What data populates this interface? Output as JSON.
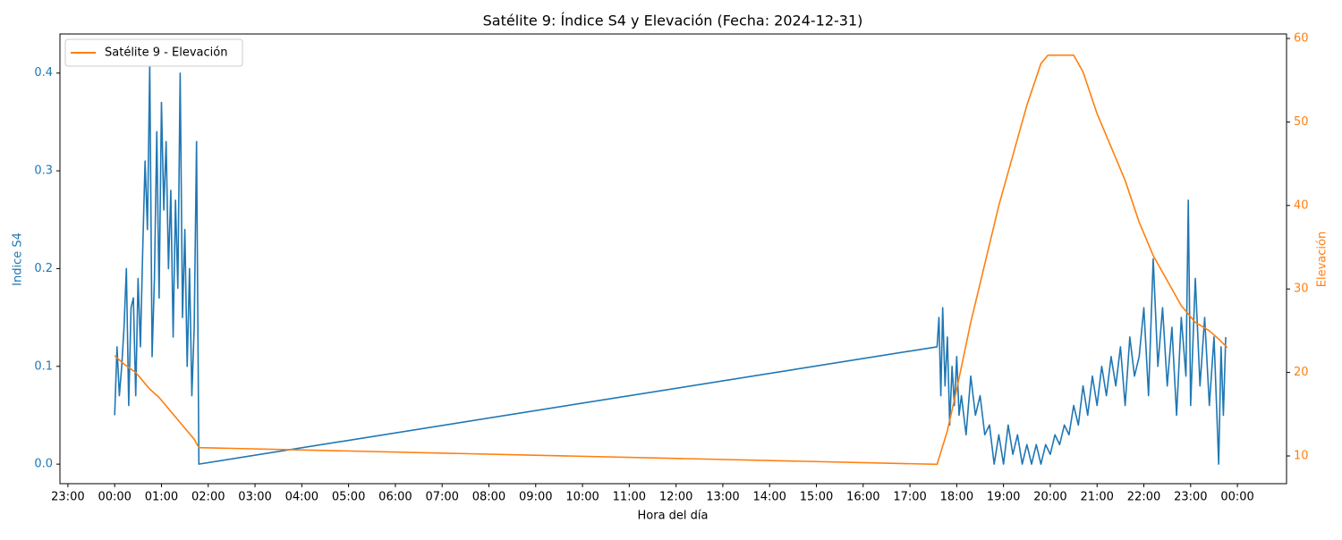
{
  "chart_data": {
    "type": "line",
    "title": "Satélite 9: Índice S4 y Elevación (Fecha: 2024-12-31)",
    "xlabel": "Hora del día",
    "ylabel": "Indice S4",
    "y2label": "Elevación",
    "xlim": [
      -1.17,
      25.05
    ],
    "xticks": [
      {
        "value": -1,
        "label": "23:00"
      },
      {
        "value": 0,
        "label": "00:00"
      },
      {
        "value": 1,
        "label": "01:00"
      },
      {
        "value": 2,
        "label": "02:00"
      },
      {
        "value": 3,
        "label": "03:00"
      },
      {
        "value": 4,
        "label": "04:00"
      },
      {
        "value": 5,
        "label": "05:00"
      },
      {
        "value": 6,
        "label": "06:00"
      },
      {
        "value": 7,
        "label": "07:00"
      },
      {
        "value": 8,
        "label": "08:00"
      },
      {
        "value": 9,
        "label": "09:00"
      },
      {
        "value": 10,
        "label": "10:00"
      },
      {
        "value": 11,
        "label": "11:00"
      },
      {
        "value": 12,
        "label": "12:00"
      },
      {
        "value": 13,
        "label": "13:00"
      },
      {
        "value": 14,
        "label": "14:00"
      },
      {
        "value": 15,
        "label": "15:00"
      },
      {
        "value": 16,
        "label": "16:00"
      },
      {
        "value": 17,
        "label": "17:00"
      },
      {
        "value": 18,
        "label": "18:00"
      },
      {
        "value": 19,
        "label": "19:00"
      },
      {
        "value": 20,
        "label": "20:00"
      },
      {
        "value": 21,
        "label": "21:00"
      },
      {
        "value": 22,
        "label": "22:00"
      },
      {
        "value": 23,
        "label": "23:00"
      },
      {
        "value": 24,
        "label": "00:00"
      }
    ],
    "ylim": [
      -0.02,
      0.44
    ],
    "yticks": [
      {
        "value": 0,
        "label": "0.0"
      },
      0.1,
      0.2,
      0.3,
      0.4
    ],
    "y2lim": [
      6.68,
      60.54
    ],
    "y2ticks": [
      10,
      20,
      30,
      40,
      50,
      60
    ],
    "legend": "upper left",
    "series": [
      {
        "color": "#1f77b4",
        "axis": "y",
        "x": [
          0.0,
          0.05,
          0.1,
          0.15,
          0.2,
          0.25,
          0.3,
          0.35,
          0.4,
          0.45,
          0.5,
          0.55,
          0.6,
          0.65,
          0.7,
          0.75,
          0.8,
          0.85,
          0.9,
          0.95,
          1.0,
          1.05,
          1.1,
          1.15,
          1.2,
          1.25,
          1.3,
          1.35,
          1.4,
          1.45,
          1.5,
          1.55,
          1.6,
          1.65,
          1.7,
          1.75,
          1.8,
          17.58,
          17.62,
          17.66,
          17.7,
          17.75,
          17.8,
          17.85,
          17.9,
          17.95,
          18.0,
          18.05,
          18.1,
          18.2,
          18.3,
          18.4,
          18.5,
          18.6,
          18.7,
          18.8,
          18.9,
          19.0,
          19.1,
          19.2,
          19.3,
          19.4,
          19.5,
          19.6,
          19.7,
          19.8,
          19.9,
          20.0,
          20.1,
          20.2,
          20.3,
          20.4,
          20.5,
          20.6,
          20.7,
          20.8,
          20.9,
          21.0,
          21.1,
          21.2,
          21.3,
          21.4,
          21.5,
          21.6,
          21.7,
          21.8,
          21.9,
          22.0,
          22.1,
          22.2,
          22.3,
          22.4,
          22.5,
          22.6,
          22.7,
          22.8,
          22.9,
          22.95,
          23.0,
          23.1,
          23.2,
          23.3,
          23.4,
          23.5,
          23.6,
          23.65,
          23.7,
          23.75
        ],
        "values": [
          0.05,
          0.12,
          0.07,
          0.1,
          0.14,
          0.2,
          0.06,
          0.16,
          0.17,
          0.07,
          0.19,
          0.12,
          0.22,
          0.31,
          0.24,
          0.41,
          0.11,
          0.19,
          0.34,
          0.17,
          0.37,
          0.26,
          0.33,
          0.2,
          0.28,
          0.13,
          0.27,
          0.18,
          0.4,
          0.15,
          0.24,
          0.1,
          0.2,
          0.07,
          0.14,
          0.33,
          0.0,
          0.12,
          0.15,
          0.07,
          0.16,
          0.08,
          0.13,
          0.04,
          0.1,
          0.06,
          0.11,
          0.05,
          0.07,
          0.03,
          0.09,
          0.05,
          0.07,
          0.03,
          0.04,
          0.0,
          0.03,
          0.0,
          0.04,
          0.01,
          0.03,
          0.0,
          0.02,
          0.0,
          0.02,
          0.0,
          0.02,
          0.01,
          0.03,
          0.02,
          0.04,
          0.03,
          0.06,
          0.04,
          0.08,
          0.05,
          0.09,
          0.06,
          0.1,
          0.07,
          0.11,
          0.08,
          0.12,
          0.06,
          0.13,
          0.09,
          0.11,
          0.16,
          0.07,
          0.21,
          0.1,
          0.16,
          0.08,
          0.14,
          0.05,
          0.15,
          0.09,
          0.27,
          0.06,
          0.19,
          0.08,
          0.15,
          0.06,
          0.13,
          0.0,
          0.12,
          0.05,
          0.13
        ]
      },
      {
        "name": "Satélite 9 - Elevación",
        "color": "#ff7f0e",
        "axis": "y2",
        "x": [
          0.0,
          0.2,
          0.45,
          0.6,
          0.75,
          0.95,
          1.1,
          1.25,
          1.4,
          1.55,
          1.7,
          1.8,
          17.58,
          17.8,
          18.0,
          18.3,
          18.6,
          18.9,
          19.2,
          19.5,
          19.8,
          19.95,
          20.5,
          20.7,
          21.0,
          21.3,
          21.6,
          21.9,
          22.2,
          22.5,
          22.8,
          23.1,
          23.4,
          23.6,
          23.78
        ],
        "values": [
          22,
          21,
          20,
          19,
          18,
          17,
          16,
          15,
          14,
          13,
          12,
          11,
          9,
          13,
          18,
          26,
          33,
          40,
          46,
          52,
          57,
          58,
          58,
          56,
          51,
          47,
          43,
          38,
          34,
          31,
          28,
          26,
          25,
          24,
          23
        ]
      }
    ]
  }
}
